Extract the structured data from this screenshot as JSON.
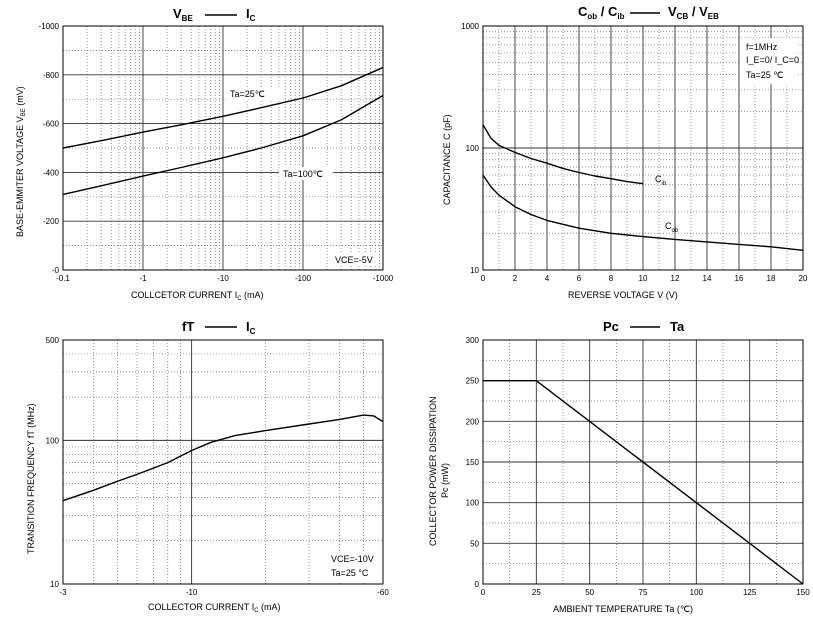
{
  "chart_data": [
    {
      "type": "line",
      "title_parts": [
        "V",
        "BE",
        "I",
        "C"
      ],
      "xlabel_parts": [
        "COLLCETOR CURRENT  ",
        "I",
        "C",
        "  (mA)"
      ],
      "ylabel_parts": [
        "BASE-EMMITER VOLTAGE  ",
        "V",
        "BE",
        "  (mV)"
      ],
      "x_scale": "log",
      "xlim": [
        -0.1,
        -1000
      ],
      "ylim": [
        0,
        -1000
      ],
      "x_tick_values": [
        -0.1,
        -1,
        -10,
        -100,
        -1000
      ],
      "x_tick_labels": [
        "-0.1",
        "-1",
        "-10",
        "-100",
        "-1000"
      ],
      "y_tick_values": [
        -1000,
        -800,
        -600,
        -400,
        -200,
        0
      ],
      "y_tick_labels": [
        "-1000",
        "-800",
        "-600",
        "-400",
        "-200",
        "-0"
      ],
      "grid": true,
      "series": [
        {
          "label": "Ta=25℃",
          "x": [
            -0.1,
            -0.3,
            -1,
            -3,
            -10,
            -30,
            -100,
            -300,
            -1000
          ],
          "y": [
            -500,
            -530,
            -565,
            -595,
            -630,
            -665,
            -705,
            -755,
            -830
          ]
        },
        {
          "label": "Ta=100℃",
          "x": [
            -0.1,
            -0.3,
            -1,
            -3,
            -10,
            -30,
            -100,
            -300,
            -1000
          ],
          "y": [
            -310,
            -345,
            -385,
            -420,
            -460,
            -500,
            -550,
            -615,
            -715
          ]
        }
      ],
      "annotations": [
        "VCE=-5V"
      ]
    },
    {
      "type": "line",
      "title_parts": [
        "C",
        "ob",
        " / C",
        "ib",
        "V",
        "CB",
        " / V",
        "EB"
      ],
      "xlabel": "REVERSE VOLTAGE   V   (V)",
      "ylabel_parts": [
        "CAPACITANCE   C   (pF)"
      ],
      "x_scale": "linear",
      "y_scale": "log",
      "xlim": [
        0,
        20
      ],
      "ylim": [
        10,
        1000
      ],
      "x_tick_labels": [
        "0",
        "2",
        "4",
        "6",
        "8",
        "10",
        "12",
        "14",
        "16",
        "18",
        "20"
      ],
      "y_tick_values": [
        10,
        100,
        1000
      ],
      "y_tick_labels": [
        "10",
        "100",
        "1000"
      ],
      "grid": true,
      "series": [
        {
          "label_parts": [
            "C",
            "ib"
          ],
          "x": [
            0,
            0.5,
            1,
            2,
            3,
            4,
            5,
            6,
            7,
            8,
            9,
            10
          ],
          "y": [
            155,
            120,
            105,
            92,
            82,
            75,
            68,
            63,
            59,
            56,
            53,
            51
          ]
        },
        {
          "label_parts": [
            "C",
            "ob"
          ],
          "x": [
            0,
            0.5,
            1,
            2,
            3,
            4,
            6,
            8,
            10,
            12,
            14,
            16,
            18,
            20
          ],
          "y": [
            60,
            48,
            41,
            33,
            28.5,
            25.5,
            22,
            20,
            18.8,
            17.8,
            17,
            16.2,
            15.5,
            14.5
          ]
        }
      ],
      "annotations": [
        "f=1MHz",
        "I_E=0/ I_C=0",
        "Ta=25 ℃"
      ]
    },
    {
      "type": "line",
      "title_parts": [
        "fT",
        "I",
        "C"
      ],
      "xlabel_parts": [
        "COLLECTOR CURRENT  ",
        "I",
        "C",
        "   (mA)"
      ],
      "ylabel": "TRANSITION FREQUENCY    fT    (MHz)",
      "x_scale": "log",
      "y_scale": "log",
      "xlim": [
        -3,
        -60
      ],
      "ylim": [
        10,
        500
      ],
      "x_tick_values": [
        -3,
        -10,
        -60
      ],
      "x_tick_labels": [
        "-3",
        "-10",
        "-60"
      ],
      "y_tick_values": [
        10,
        100,
        500
      ],
      "y_tick_labels": [
        "10",
        "100",
        "500"
      ],
      "grid": true,
      "series": [
        {
          "x": [
            -3,
            -4,
            -5,
            -6,
            -8,
            -10,
            -12,
            -15,
            -20,
            -30,
            -40,
            -50,
            -55,
            -60
          ],
          "y": [
            38,
            45,
            52,
            58,
            70,
            85,
            97,
            108,
            117,
            130,
            140,
            150,
            148,
            135
          ]
        }
      ],
      "annotations": [
        "VCE=-10V",
        "Ta=25 °C"
      ]
    },
    {
      "type": "line",
      "title_parts": [
        "Pc",
        "Ta"
      ],
      "xlabel": "AMBIENT TEMPERATURE    Ta    (℃)",
      "ylabel_line1": "COLLECTOR POWER DISSIPATION",
      "ylabel_line2": "Pc    (mW)",
      "x_scale": "linear",
      "xlim": [
        0,
        150
      ],
      "ylim": [
        0,
        300
      ],
      "x_tick_labels": [
        "0",
        "25",
        "50",
        "75",
        "100",
        "125",
        "150"
      ],
      "y_tick_labels": [
        "0",
        "50",
        "100",
        "150",
        "200",
        "250",
        "300"
      ],
      "grid": true,
      "series": [
        {
          "x": [
            0,
            25,
            150
          ],
          "y": [
            250,
            250,
            0
          ]
        }
      ]
    }
  ]
}
